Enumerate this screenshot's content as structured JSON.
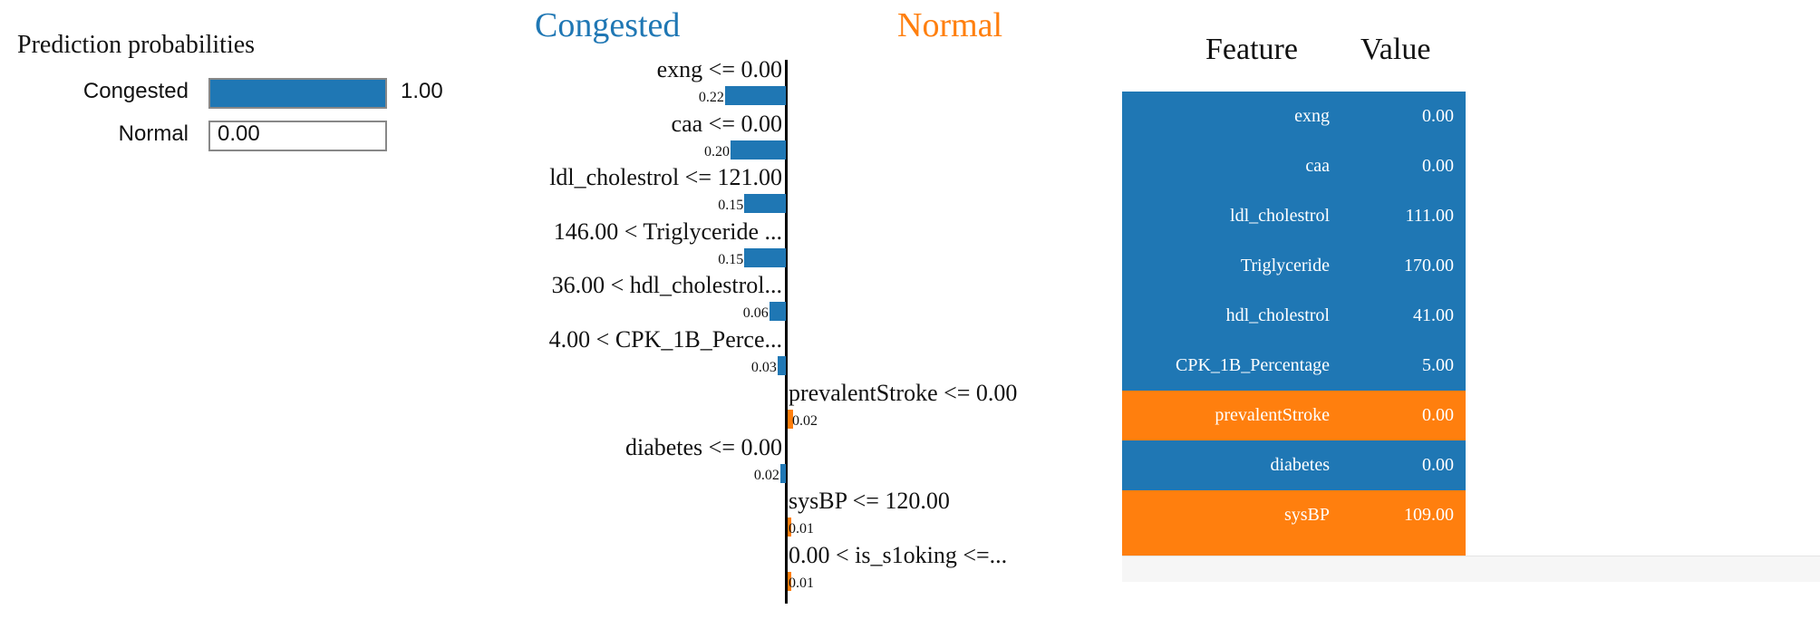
{
  "prediction": {
    "title": "Prediction probabilities",
    "items": [
      {
        "label": "Congested",
        "value": 1.0,
        "value_text": "1.00",
        "color": "#1f77b4"
      },
      {
        "label": "Normal",
        "value": 0.0,
        "value_text": "0.00",
        "color": "#ff7f0e"
      }
    ]
  },
  "chart_data": {
    "type": "bar",
    "orientation": "horizontal",
    "negative_class": "Congested",
    "positive_class": "Normal",
    "colors": {
      "Congested": "#1f77b4",
      "Normal": "#ff7f0e"
    },
    "features": [
      {
        "label": "exng <= 0.00",
        "weight": 0.22,
        "weight_text": "0.22",
        "class": "Congested"
      },
      {
        "label": "caa <= 0.00",
        "weight": 0.2,
        "weight_text": "0.20",
        "class": "Congested"
      },
      {
        "label": "ldl_cholestrol <= 121.00",
        "weight": 0.15,
        "weight_text": "0.15",
        "class": "Congested"
      },
      {
        "label": "146.00 < Triglyceride ...",
        "weight": 0.15,
        "weight_text": "0.15",
        "class": "Congested"
      },
      {
        "label": "36.00 < hdl_cholestrol...",
        "weight": 0.06,
        "weight_text": "0.06",
        "class": "Congested"
      },
      {
        "label": "4.00 < CPK_1B_Perce...",
        "weight": 0.03,
        "weight_text": "0.03",
        "class": "Congested"
      },
      {
        "label": "prevalentStroke <= 0.00",
        "weight": 0.02,
        "weight_text": "0.02",
        "class": "Normal"
      },
      {
        "label": "diabetes <= 0.00",
        "weight": 0.02,
        "weight_text": "0.02",
        "class": "Congested"
      },
      {
        "label": "sysBP <= 120.00",
        "weight": 0.01,
        "weight_text": "0.01",
        "class": "Normal"
      },
      {
        "label": "0.00 < is_s1oking <=...",
        "weight": 0.01,
        "weight_text": "0.01",
        "class": "Normal"
      }
    ]
  },
  "table": {
    "header_feature": "Feature",
    "header_value": "Value",
    "rows": [
      {
        "feature": "exng",
        "value": "0.00",
        "class": "Congested"
      },
      {
        "feature": "caa",
        "value": "0.00",
        "class": "Congested"
      },
      {
        "feature": "ldl_cholestrol",
        "value": "111.00",
        "class": "Congested"
      },
      {
        "feature": "Triglyceride",
        "value": "170.00",
        "class": "Congested"
      },
      {
        "feature": "hdl_cholestrol",
        "value": "41.00",
        "class": "Congested"
      },
      {
        "feature": "CPK_1B_Percentage",
        "value": "5.00",
        "class": "Congested"
      },
      {
        "feature": "prevalentStroke",
        "value": "0.00",
        "class": "Normal"
      },
      {
        "feature": "diabetes",
        "value": "0.00",
        "class": "Congested"
      },
      {
        "feature": "sysBP",
        "value": "109.00",
        "class": "Normal"
      }
    ]
  }
}
